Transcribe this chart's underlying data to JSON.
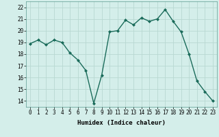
{
  "x": [
    0,
    1,
    2,
    3,
    4,
    5,
    6,
    7,
    8,
    9,
    10,
    11,
    12,
    13,
    14,
    15,
    16,
    17,
    18,
    19,
    20,
    21,
    22,
    23
  ],
  "y": [
    18.9,
    19.2,
    18.8,
    19.2,
    19.0,
    18.1,
    17.5,
    16.6,
    13.8,
    16.2,
    19.9,
    20.0,
    20.9,
    20.5,
    21.1,
    20.8,
    21.0,
    21.8,
    20.8,
    19.9,
    18.0,
    15.7,
    14.8,
    14.0
  ],
  "line_color": "#1a6b5a",
  "marker": "D",
  "marker_size": 2.0,
  "bg_color": "#d4eeea",
  "grid_color": "#b8d8d2",
  "xlabel": "Humidex (Indice chaleur)",
  "ylim": [
    13.5,
    22.5
  ],
  "xlim": [
    -0.5,
    23.5
  ],
  "yticks": [
    14,
    15,
    16,
    17,
    18,
    19,
    20,
    21,
    22
  ],
  "xticks": [
    0,
    1,
    2,
    3,
    4,
    5,
    6,
    7,
    8,
    9,
    10,
    11,
    12,
    13,
    14,
    15,
    16,
    17,
    18,
    19,
    20,
    21,
    22,
    23
  ],
  "xlabel_fontsize": 6.5,
  "tick_fontsize": 5.5,
  "line_width": 1.0
}
